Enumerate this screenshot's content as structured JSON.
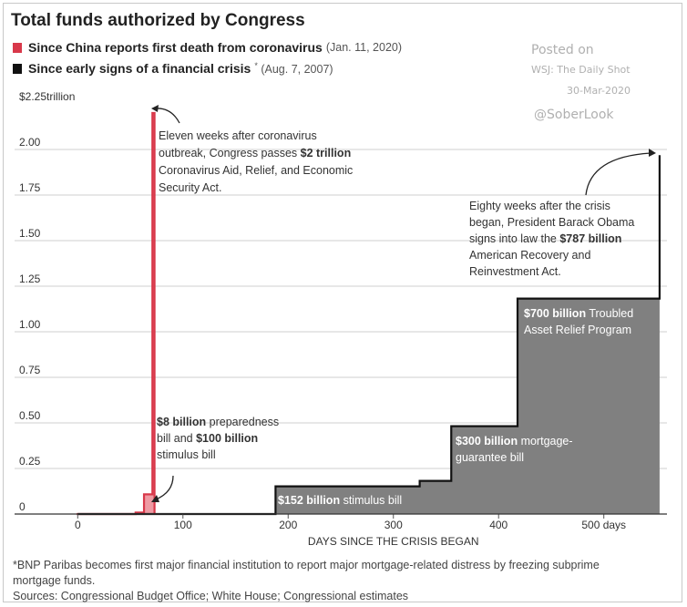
{
  "title": "Total funds authorized by Congress",
  "legend": [
    {
      "label": "Since China reports first death from coronavirus",
      "date": "(Jan. 11, 2020)",
      "color": "#d8384a"
    },
    {
      "label": "Since early signs of a financial crisis",
      "date": "(Aug. 7, 2007)",
      "color": "#111111"
    }
  ],
  "watermark": {
    "posted_on": "Posted on",
    "source": "WSJ: The Daily Shot",
    "date": "30-Mar-2020",
    "handle": "@SoberLook"
  },
  "chart_data": {
    "type": "line",
    "xlabel": "DAYS SINCE THE CRISIS BEGAN",
    "ylabel": "",
    "xlim": [
      -60,
      560
    ],
    "ylim": [
      0,
      2.25
    ],
    "x_ticks": [
      {
        "value": 0,
        "label": "0"
      },
      {
        "value": 100,
        "label": "100"
      },
      {
        "value": 200,
        "label": "200"
      },
      {
        "value": 300,
        "label": "300"
      },
      {
        "value": 400,
        "label": "400"
      },
      {
        "value": 500,
        "label": "500 days"
      }
    ],
    "y_ticks": [
      {
        "value": 0,
        "label": "0"
      },
      {
        "value": 0.25,
        "label": "0.25"
      },
      {
        "value": 0.5,
        "label": "0.50"
      },
      {
        "value": 0.75,
        "label": "0.75"
      },
      {
        "value": 1.0,
        "label": "1.00"
      },
      {
        "value": 1.25,
        "label": "1.25"
      },
      {
        "value": 1.5,
        "label": "1.50"
      },
      {
        "value": 1.75,
        "label": "1.75"
      },
      {
        "value": 2.0,
        "label": "2.00"
      },
      {
        "value": 2.25,
        "label": "$2.25trillion"
      }
    ],
    "grid": true,
    "series": [
      {
        "color": "#d8384a",
        "fill": "#ee9aa3",
        "points": [
          [
            -1,
            0
          ],
          [
            55,
            0
          ],
          [
            55,
            0.008
          ],
          [
            63,
            0.008
          ],
          [
            63,
            0.108
          ],
          [
            71,
            0.108
          ],
          [
            71,
            2.2
          ],
          [
            73,
            2.2
          ],
          [
            73,
            0
          ]
        ]
      },
      {
        "color": "#111111",
        "fill": "#808080",
        "points": [
          [
            0,
            0
          ],
          [
            188,
            0
          ],
          [
            188,
            0.152
          ],
          [
            325,
            0.152
          ],
          [
            325,
            0.182
          ],
          [
            355,
            0.182
          ],
          [
            355,
            0.482
          ],
          [
            418,
            0.482
          ],
          [
            418,
            1.182
          ],
          [
            553,
            1.182
          ],
          [
            553,
            1.969
          ]
        ]
      }
    ],
    "annotations": [
      {
        "text_parts": [
          [
            "Eleven weeks after coronavirus",
            ""
          ],
          [
            "outbreak, Congress passes ",
            "$2 trillion"
          ],
          [
            "Coronavirus Aid, Relief, and Economic",
            ""
          ],
          [
            "Security Act.",
            ""
          ]
        ]
      },
      {
        "text_parts": [
          [
            "Eighty weeks after the crisis",
            ""
          ],
          [
            "began, President Barack Obama",
            ""
          ],
          [
            "signs into law the ",
            "$787 billion"
          ],
          [
            "American Recovery and",
            ""
          ],
          [
            "Reinvestment Act.",
            ""
          ]
        ]
      },
      {
        "text_parts": [
          [
            "",
            "$8 billion",
            " preparedness"
          ],
          [
            "bill and ",
            "$100 billion"
          ],
          [
            "stimulus bill",
            ""
          ]
        ]
      },
      {
        "text_parts": [
          [
            "",
            "$700 billion",
            " Troubled"
          ],
          [
            "Asset Relief Program",
            ""
          ]
        ]
      },
      {
        "text_parts": [
          [
            "",
            "$300 billion",
            " mortgage-"
          ],
          [
            "guarantee bill",
            ""
          ]
        ]
      },
      {
        "text_parts": [
          [
            "",
            "$152 billion",
            " stimulus bill"
          ]
        ]
      }
    ]
  },
  "footnote": {
    "lines": [
      "*BNP Paribas becomes first major financial institution to report major mortgage-related distress by freezing subprime",
      "mortgage funds.",
      "Sources: Congressional Budget Office; White House; Congressional estimates"
    ]
  }
}
